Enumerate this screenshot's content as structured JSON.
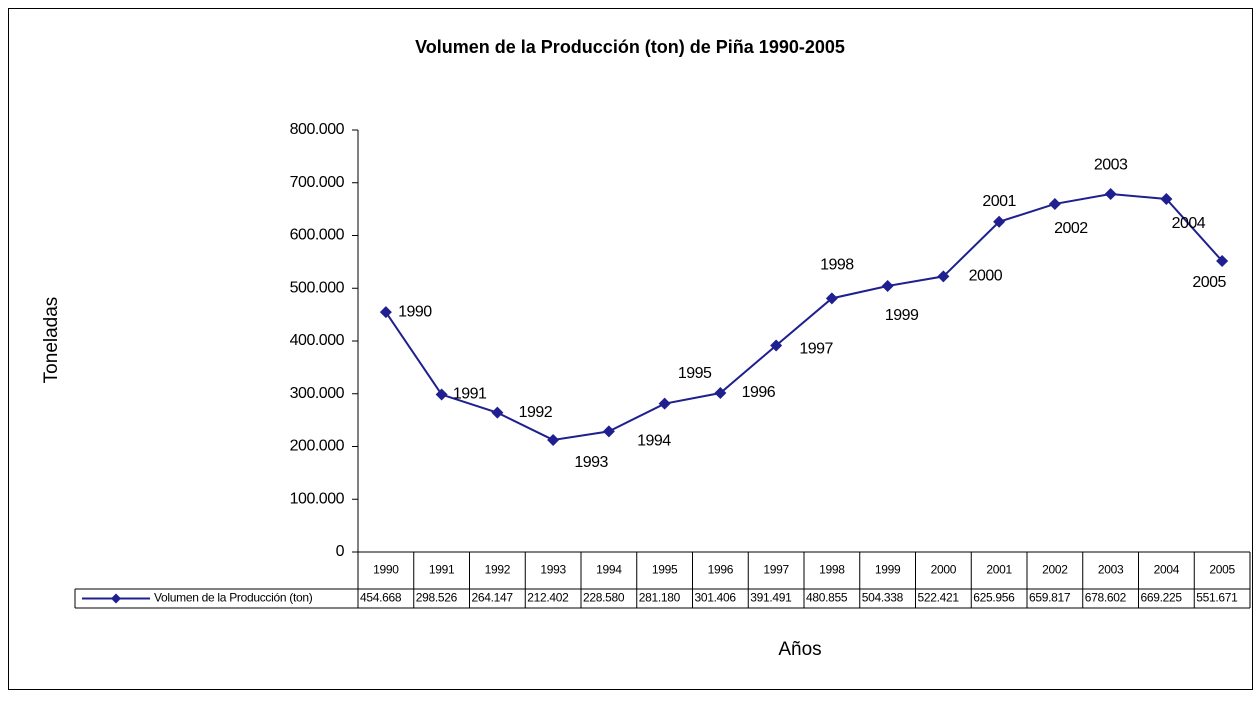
{
  "chart_data": {
    "type": "line",
    "title": "Volumen de la Producción (ton) de Piña 1990-2005",
    "x_label": "Años",
    "y_label": "Toneladas",
    "categories": [
      "1990",
      "1991",
      "1992",
      "1993",
      "1994",
      "1995",
      "1996",
      "1997",
      "1998",
      "1999",
      "2000",
      "2001",
      "2002",
      "2003",
      "2004",
      "2005"
    ],
    "series": [
      {
        "name": "Volumen de la Producción (ton)",
        "color": "#1f1f8f",
        "values": [
          454668,
          298526,
          264147,
          212402,
          228580,
          281180,
          301406,
          391491,
          480855,
          504338,
          522421,
          625956,
          659817,
          678602,
          669225,
          551671
        ],
        "value_labels": [
          "454.668",
          "298.526",
          "264.147",
          "212.402",
          "228.580",
          "281.180",
          "301.406",
          "391.491",
          "480.855",
          "504.338",
          "522.421",
          "625.956",
          "659.817",
          "678.602",
          "669.225",
          "551.671"
        ]
      }
    ],
    "ylim": [
      0,
      800000
    ],
    "yticks": [
      0,
      {
        "value": 100000,
        "label": "100.000"
      },
      {
        "value": 200000,
        "label": "200.000"
      },
      {
        "value": 300000,
        "label": "300.000"
      },
      {
        "value": 400000,
        "label": "400.000"
      },
      {
        "value": 500000,
        "label": "500.000"
      },
      {
        "value": 600000,
        "label": "600.000"
      },
      {
        "value": 700000,
        "label": "700.000"
      },
      {
        "value": 800000,
        "label": "800.000"
      }
    ],
    "grid": false
  }
}
